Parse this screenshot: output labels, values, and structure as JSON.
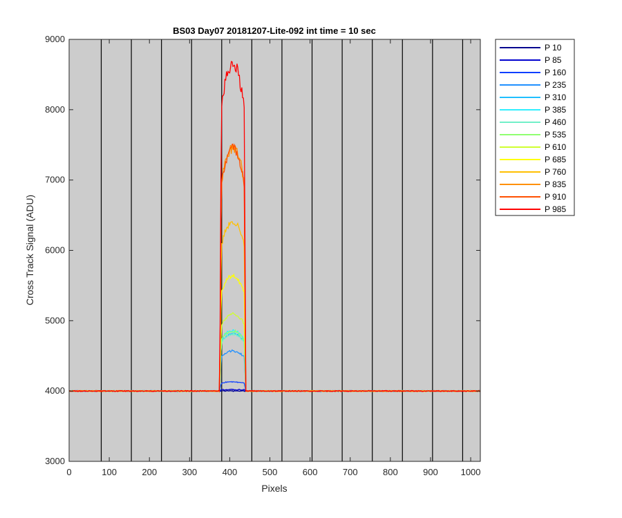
{
  "chart_data": {
    "type": "line",
    "title": "BS03 Day07 20181207-Lite-092 int time = 10 sec",
    "xlabel": "Pixels",
    "ylabel": "Cross Track Signal (ADU)",
    "xlim": [
      0,
      1024
    ],
    "ylim": [
      3000,
      9000
    ],
    "xticks": [
      0,
      100,
      200,
      300,
      400,
      500,
      600,
      700,
      800,
      900,
      1000
    ],
    "yticks": [
      3000,
      4000,
      5000,
      6000,
      7000,
      8000,
      9000
    ],
    "background_color": "#cccccc",
    "grid": false,
    "legend_position": "outside-right",
    "vertical_lines_x": [
      80,
      155,
      230,
      305,
      380,
      455,
      530,
      605,
      680,
      755,
      830,
      905,
      980
    ],
    "baseline": 4000,
    "illuminated_region": [
      375,
      440
    ],
    "series": [
      {
        "name": "P 10",
        "peak": 4000,
        "color": "#00008f"
      },
      {
        "name": "P 85",
        "peak": 4020,
        "color": "#0000cf"
      },
      {
        "name": "P 160",
        "peak": 4130,
        "color": "#0f3fff"
      },
      {
        "name": "P 235",
        "peak": 4570,
        "color": "#1f8fff"
      },
      {
        "name": "P 310",
        "peak": 4820,
        "color": "#1fbfff"
      },
      {
        "name": "P 385",
        "peak": 4860,
        "color": "#2fefff"
      },
      {
        "name": "P 460",
        "peak": 4810,
        "color": "#70f0c8"
      },
      {
        "name": "P 535",
        "peak": 4850,
        "color": "#8fff70"
      },
      {
        "name": "P 610",
        "peak": 5100,
        "color": "#cfff2f"
      },
      {
        "name": "P 685",
        "peak": 5640,
        "color": "#ffff00"
      },
      {
        "name": "P 760",
        "peak": 6400,
        "color": "#ffbf00"
      },
      {
        "name": "P 835",
        "peak": 7450,
        "color": "#ff8f00"
      },
      {
        "name": "P 910",
        "peak": 7450,
        "color": "#ff4f00"
      },
      {
        "name": "P 985",
        "peak": 8650,
        "color": "#ff0000"
      }
    ]
  }
}
